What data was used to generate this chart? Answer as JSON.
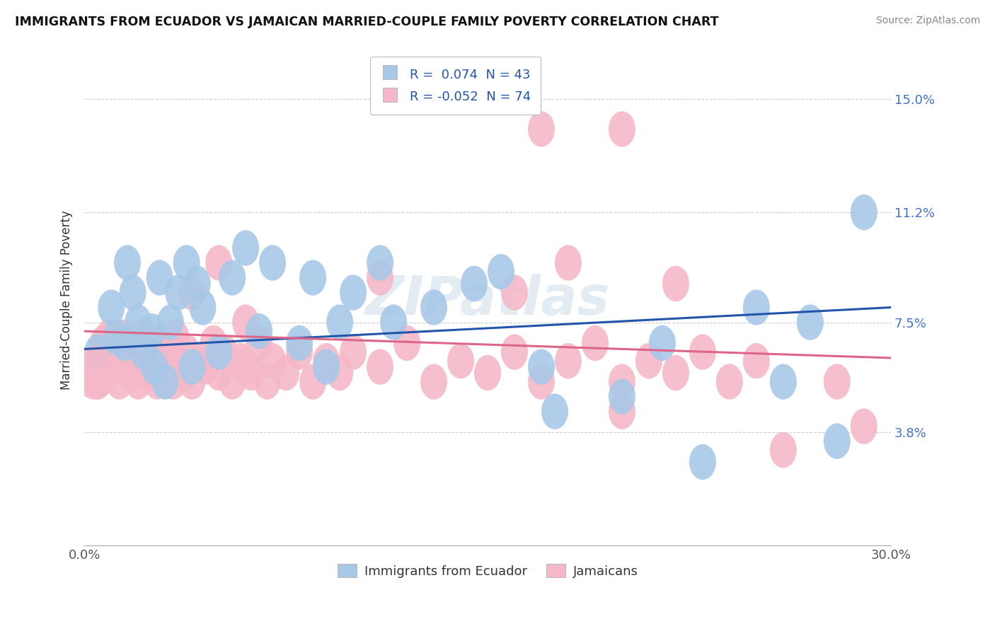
{
  "title": "IMMIGRANTS FROM ECUADOR VS JAMAICAN MARRIED-COUPLE FAMILY POVERTY CORRELATION CHART",
  "source": "Source: ZipAtlas.com",
  "ylabel": "Married-Couple Family Poverty",
  "watermark": "ZIPatlas",
  "xlim": [
    0.0,
    0.3
  ],
  "ylim": [
    0.0,
    0.165
  ],
  "ytick_values": [
    0.038,
    0.075,
    0.112,
    0.15
  ],
  "ytick_labels": [
    "3.8%",
    "7.5%",
    "11.2%",
    "15.0%"
  ],
  "blue_R": 0.074,
  "blue_N": 43,
  "pink_R": -0.052,
  "pink_N": 74,
  "blue_color": "#a8c8e8",
  "pink_color": "#f4b8c8",
  "blue_line_color": "#2255aa",
  "pink_line_color": "#dd6688",
  "legend_label_blue": "Immigrants from Ecuador",
  "legend_label_pink": "Jamaicans",
  "blue_scatter_x": [
    0.005,
    0.01,
    0.012,
    0.015,
    0.016,
    0.018,
    0.02,
    0.022,
    0.025,
    0.026,
    0.028,
    0.03,
    0.032,
    0.035,
    0.038,
    0.04,
    0.042,
    0.044,
    0.05,
    0.055,
    0.06,
    0.065,
    0.07,
    0.08,
    0.085,
    0.09,
    0.095,
    0.1,
    0.11,
    0.115,
    0.13,
    0.145,
    0.155,
    0.17,
    0.175,
    0.2,
    0.215,
    0.23,
    0.25,
    0.26,
    0.27,
    0.28,
    0.29
  ],
  "blue_scatter_y": [
    0.065,
    0.08,
    0.07,
    0.068,
    0.095,
    0.085,
    0.075,
    0.065,
    0.072,
    0.06,
    0.09,
    0.055,
    0.075,
    0.085,
    0.095,
    0.06,
    0.088,
    0.08,
    0.065,
    0.09,
    0.1,
    0.072,
    0.095,
    0.068,
    0.09,
    0.06,
    0.075,
    0.085,
    0.095,
    0.075,
    0.08,
    0.088,
    0.092,
    0.06,
    0.045,
    0.05,
    0.068,
    0.028,
    0.08,
    0.055,
    0.075,
    0.035,
    0.112
  ],
  "pink_scatter_x": [
    0.003,
    0.005,
    0.007,
    0.009,
    0.01,
    0.012,
    0.013,
    0.014,
    0.015,
    0.016,
    0.018,
    0.019,
    0.02,
    0.021,
    0.022,
    0.023,
    0.025,
    0.026,
    0.027,
    0.028,
    0.03,
    0.032,
    0.033,
    0.034,
    0.035,
    0.037,
    0.038,
    0.04,
    0.042,
    0.045,
    0.048,
    0.05,
    0.052,
    0.055,
    0.058,
    0.06,
    0.062,
    0.065,
    0.068,
    0.07,
    0.075,
    0.08,
    0.085,
    0.09,
    0.095,
    0.1,
    0.11,
    0.12,
    0.13,
    0.14,
    0.15,
    0.16,
    0.17,
    0.18,
    0.19,
    0.2,
    0.21,
    0.22,
    0.23,
    0.24,
    0.04,
    0.05,
    0.06,
    0.11,
    0.16,
    0.18,
    0.2,
    0.22,
    0.25,
    0.26,
    0.17,
    0.2,
    0.28,
    0.29
  ],
  "pink_scatter_y": [
    0.06,
    0.055,
    0.068,
    0.07,
    0.06,
    0.065,
    0.055,
    0.07,
    0.06,
    0.065,
    0.058,
    0.068,
    0.055,
    0.062,
    0.07,
    0.06,
    0.058,
    0.065,
    0.055,
    0.068,
    0.06,
    0.065,
    0.055,
    0.07,
    0.062,
    0.058,
    0.065,
    0.055,
    0.062,
    0.06,
    0.068,
    0.058,
    0.065,
    0.055,
    0.062,
    0.06,
    0.058,
    0.068,
    0.055,
    0.062,
    0.058,
    0.065,
    0.055,
    0.062,
    0.058,
    0.065,
    0.06,
    0.068,
    0.055,
    0.062,
    0.058,
    0.065,
    0.055,
    0.062,
    0.068,
    0.055,
    0.062,
    0.058,
    0.065,
    0.055,
    0.085,
    0.095,
    0.075,
    0.09,
    0.085,
    0.095,
    0.045,
    0.088,
    0.062,
    0.032,
    0.14,
    0.14,
    0.055,
    0.04
  ],
  "blue_line_x0": 0.0,
  "blue_line_y0": 0.066,
  "blue_line_x1": 0.3,
  "blue_line_y1": 0.08,
  "pink_line_x0": 0.0,
  "pink_line_y0": 0.072,
  "pink_line_x1": 0.3,
  "pink_line_y1": 0.063
}
